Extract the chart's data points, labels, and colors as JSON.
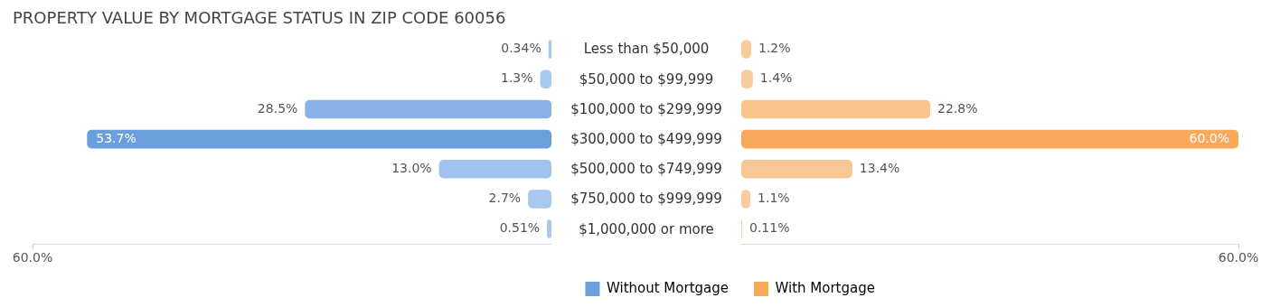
{
  "chart_data": [
    {
      "type": "bar",
      "orientation": "horizontal",
      "title": "PROPERTY VALUE BY MORTGAGE STATUS IN ZIP CODE 60056",
      "categories": [
        "Less than $50,000",
        "$50,000 to $99,999",
        "$100,000 to $299,999",
        "$300,000 to $499,999",
        "$500,000 to $749,999",
        "$750,000 to $999,999",
        "$1,000,000 or more"
      ],
      "series": [
        {
          "name": "Without Mortgage",
          "color": "#6a9fdd",
          "colors": [
            "#a9c8ef",
            "#a9c8ef",
            "#89b2e8",
            "#6a9fdd",
            "#a0c2ee",
            "#a9c8ef",
            "#a9c8ef"
          ],
          "values": [
            0.34,
            1.3,
            28.5,
            53.7,
            13.0,
            2.7,
            0.51
          ],
          "value_labels": [
            "0.34%",
            "1.3%",
            "28.5%",
            "53.7%",
            "13.0%",
            "2.7%",
            "0.51%"
          ]
        }
      ],
      "xlim": [
        60,
        0
      ],
      "xticks": [
        {
          "value": 60,
          "label": "60.0%"
        }
      ],
      "grid": false,
      "legend": "bottom right"
    },
    {
      "type": "bar",
      "orientation": "horizontal",
      "categories": [
        null,
        null,
        null,
        null,
        null,
        null,
        null
      ],
      "series": [
        {
          "name": "With Mortgage",
          "color": "#f8a95a",
          "colors": [
            "#f9cc9d",
            "#f9cc9d",
            "#f9c38c",
            "#f8a95a",
            "#f9c793",
            "#f9cc9d",
            "#f9cc9d"
          ],
          "values": [
            1.2,
            1.4,
            22.8,
            60.0,
            13.4,
            1.1,
            0.11
          ],
          "value_labels": [
            "1.2%",
            "1.4%",
            "22.8%",
            "60.0%",
            "13.4%",
            "1.1%",
            "0.11%"
          ]
        }
      ],
      "xlim": [
        0,
        60
      ],
      "xticks": [
        {
          "value": 60,
          "label": "60.0%"
        }
      ],
      "grid": false,
      "legend": "bottom left",
      "tick_labels": "x"
    }
  ]
}
